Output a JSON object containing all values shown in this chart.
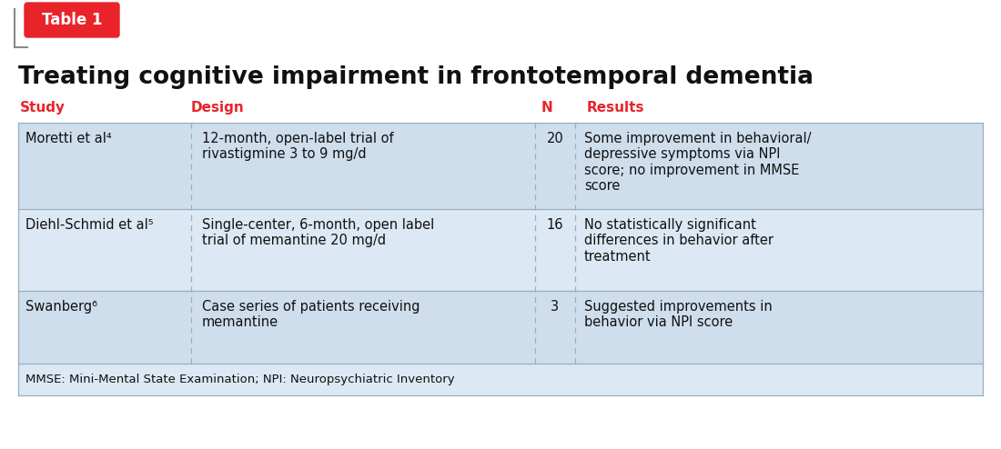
{
  "title": "Treating cognitive impairment in frontotemporal dementia",
  "table_label": "Table 1",
  "badge_color": "#E8242A",
  "header_text_color": "#E8242A",
  "title_color": "#111111",
  "bg_color": "#FFFFFF",
  "row1_color": "#cfdeed",
  "row2_color": "#dce8f3",
  "border_color": "#9aafbf",
  "col_headers": [
    "Study",
    "Design",
    "N",
    "Results"
  ],
  "rows": [
    {
      "study": "Moretti et al⁴",
      "design": "12-month, open-label trial of\nrivastigmine 3 to 9 mg/d",
      "n": "20",
      "results": "Some improvement in behavioral/\ndepressive symptoms via NPI\nscore; no improvement in MMSE\nscore"
    },
    {
      "study": "Diehl-Schmid et al⁵",
      "design": "Single-center, 6-month, open label\ntrial of memantine 20 mg/d",
      "n": "16",
      "results": "No statistically significant\ndifferences in behavior after\ntreatment"
    },
    {
      "study": "Swanberg⁶",
      "design": "Case series of patients receiving\nmemantine",
      "n": "3",
      "results": "Suggested improvements in\nbehavior via NPI score"
    }
  ],
  "footnote": "MMSE: Mini-Mental State Examination; NPI: Neuropsychiatric Inventory",
  "dpi": 100,
  "fig_width": 11.0,
  "fig_height": 4.94
}
